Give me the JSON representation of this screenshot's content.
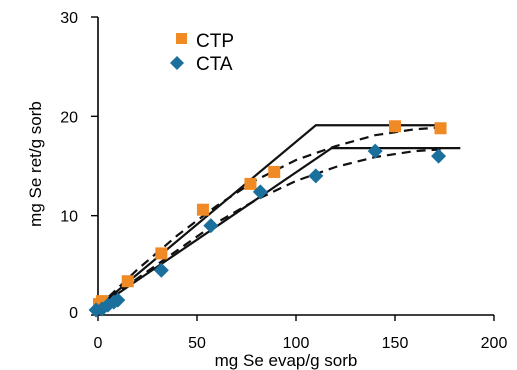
{
  "chart_data": {
    "type": "scatter",
    "title": "",
    "xlabel": "mg Se evap/g sorb",
    "ylabel": "mg Se ret/g sorb",
    "xlim": [
      0,
      200
    ],
    "ylim": [
      0,
      30
    ],
    "xticks": [
      "0",
      "50",
      "100",
      "150",
      "200"
    ],
    "yticks": [
      "0",
      "10",
      "20",
      "30"
    ],
    "grid": false,
    "legend_position": "top-left",
    "series": [
      {
        "name": "CTP",
        "marker": "square",
        "color": "#f08a24",
        "x": [
          0.5,
          2,
          15,
          32,
          53,
          77,
          89,
          150,
          173
        ],
        "y": [
          1.1,
          1.4,
          3.4,
          6.2,
          10.6,
          13.2,
          14.4,
          19.0,
          18.8
        ]
      },
      {
        "name": "CTA",
        "marker": "diamond",
        "color": "#1b6f9c",
        "x": [
          -1,
          2,
          5,
          8,
          10,
          32,
          57,
          82,
          110,
          140,
          172
        ],
        "y": [
          0.5,
          0.6,
          1.0,
          1.3,
          1.5,
          4.5,
          9.0,
          12.4,
          14.0,
          16.5,
          16.0
        ]
      }
    ],
    "model_lines": [
      {
        "series": "CTP",
        "style": "solid",
        "x": [
          0,
          110,
          172
        ],
        "y": [
          0.8,
          19.1,
          19.1
        ]
      },
      {
        "series": "CTA",
        "style": "solid",
        "x": [
          0,
          118,
          183
        ],
        "y": [
          0.8,
          16.8,
          16.8
        ]
      },
      {
        "series": "CTP",
        "style": "dashed",
        "x": [
          0,
          20,
          40,
          60,
          80,
          100,
          120,
          140,
          160,
          175
        ],
        "y": [
          0.8,
          4.6,
          8.0,
          11.0,
          13.6,
          15.6,
          17.0,
          18.1,
          18.7,
          18.9
        ]
      },
      {
        "series": "CTA",
        "style": "dashed",
        "x": [
          0,
          20,
          40,
          60,
          80,
          100,
          120,
          140,
          160,
          175
        ],
        "y": [
          0.8,
          3.7,
          6.5,
          9.3,
          11.6,
          13.5,
          14.9,
          15.9,
          16.5,
          16.7
        ]
      }
    ]
  }
}
